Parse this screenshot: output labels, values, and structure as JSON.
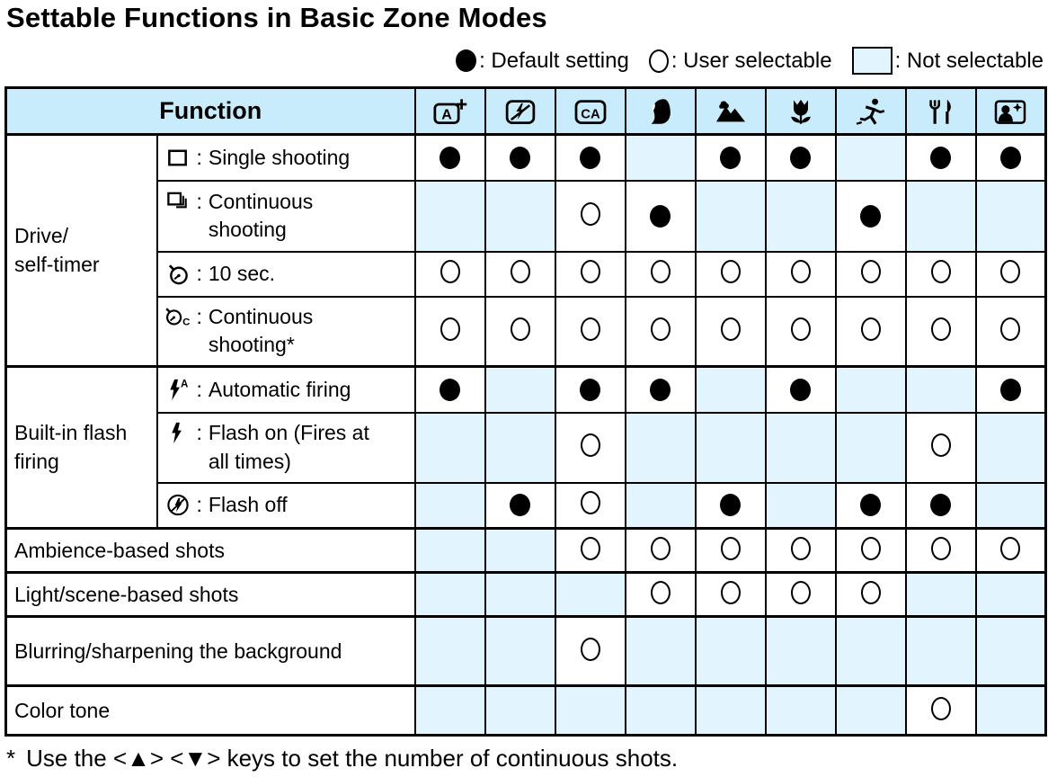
{
  "title": "Settable Functions in Basic Zone Modes",
  "legend": {
    "default_label": ": Default setting",
    "selectable_label": ": User selectable",
    "not_selectable_label": ": Not selectable"
  },
  "colors": {
    "header_bg": "#c8ecfb",
    "not_selectable_bg": "#e2f4fd",
    "border": "#000000",
    "symbol": "#000000"
  },
  "table": {
    "function_header": "Function",
    "colon": ":",
    "mode_columns": [
      "scene-intelligent-auto",
      "flash-off",
      "creative-auto",
      "portrait",
      "landscape",
      "close-up",
      "sports",
      "food",
      "night-portrait"
    ],
    "cell_states": {
      "D": "default-setting",
      "U": "user-selectable",
      "N": "not-selectable"
    },
    "rows": [
      {
        "group": "Drive/\nself-timer",
        "group_span": 4,
        "icon": "single-frame",
        "label": "Single shooting",
        "cells": [
          "D",
          "D",
          "D",
          "N",
          "D",
          "D",
          "N",
          "D",
          "D"
        ]
      },
      {
        "icon": "continuous-frames",
        "label": "Continuous\nshooting",
        "cells": [
          "N",
          "N",
          "U",
          "D",
          "N",
          "N",
          "D",
          "N",
          "N"
        ]
      },
      {
        "icon": "self-timer",
        "label": "10 sec.",
        "cells": [
          "U",
          "U",
          "U",
          "U",
          "U",
          "U",
          "U",
          "U",
          "U"
        ]
      },
      {
        "icon": "self-timer-c",
        "label": "Continuous\nshooting*",
        "cells": [
          "U",
          "U",
          "U",
          "U",
          "U",
          "U",
          "U",
          "U",
          "U"
        ]
      },
      {
        "group": "Built-in flash\nfiring",
        "group_span": 3,
        "icon": "flash-auto",
        "label": "Automatic firing",
        "cells": [
          "D",
          "N",
          "D",
          "D",
          "N",
          "D",
          "N",
          "N",
          "D"
        ]
      },
      {
        "icon": "flash",
        "label": "Flash on (Fires at\nall times)",
        "cells": [
          "N",
          "N",
          "U",
          "N",
          "N",
          "N",
          "N",
          "U",
          "N"
        ]
      },
      {
        "icon": "flash-off-circle",
        "label": "Flash off",
        "cells": [
          "N",
          "D",
          "U",
          "N",
          "D",
          "N",
          "D",
          "D",
          "N"
        ]
      },
      {
        "label_full": "Ambience-based shots",
        "cells": [
          "N",
          "N",
          "U",
          "U",
          "U",
          "U",
          "U",
          "U",
          "U"
        ]
      },
      {
        "label_full": "Light/scene-based shots",
        "cells": [
          "N",
          "N",
          "N",
          "U",
          "U",
          "U",
          "U",
          "N",
          "N"
        ]
      },
      {
        "label_full": "Blurring/sharpening the background",
        "cells": [
          "N",
          "N",
          "U",
          "N",
          "N",
          "N",
          "N",
          "N",
          "N"
        ]
      },
      {
        "label_full": "Color tone",
        "cells": [
          "N",
          "N",
          "N",
          "N",
          "N",
          "N",
          "N",
          "U",
          "N"
        ]
      }
    ]
  },
  "footnote": {
    "marker": "*",
    "text": "Use the <▲> <▼> keys to set the number of continuous shots."
  }
}
